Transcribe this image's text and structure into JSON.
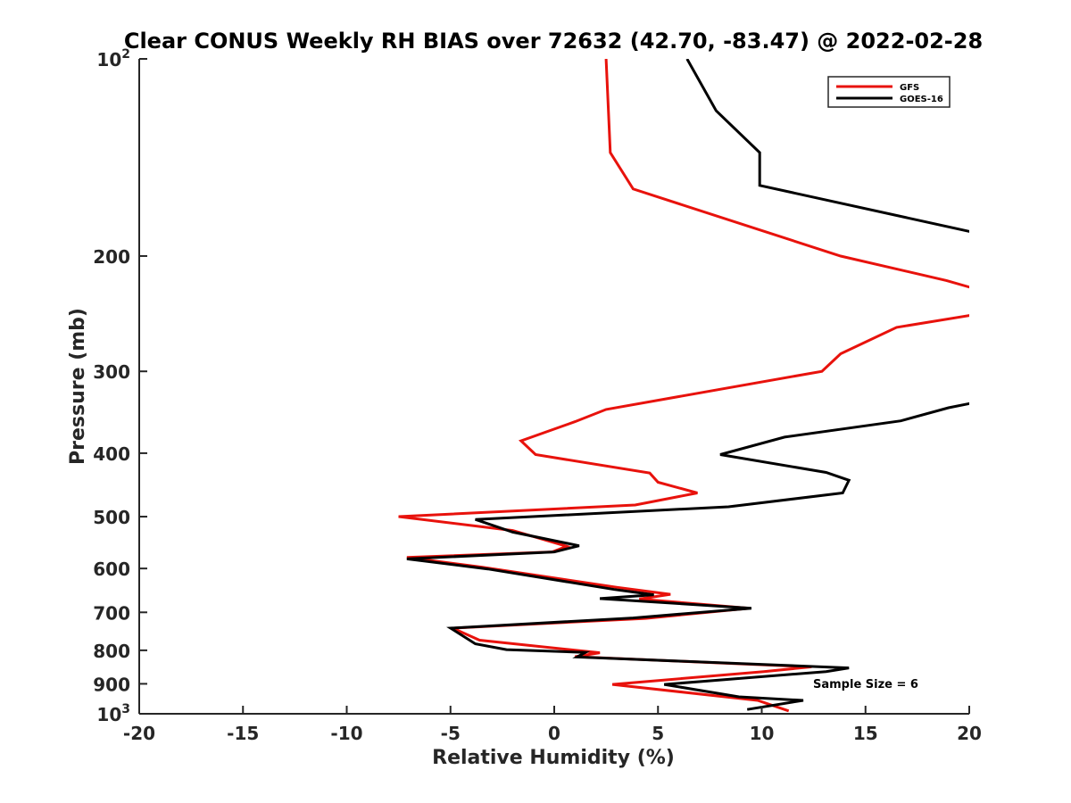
{
  "chart_data": {
    "type": "line",
    "title": "Clear CONUS Weekly RH BIAS over 72632 (42.70, -83.47) @ 2022-02-28",
    "xlabel": "Relative Humidity (%)",
    "ylabel": "Pressure (mb)",
    "xlim": [
      -20,
      20
    ],
    "ylim": [
      100,
      1000
    ],
    "y_scale": "log",
    "y_reversed": true,
    "x_ticks": [
      "-20",
      "-15",
      "-10",
      "-5",
      "0",
      "5",
      "10",
      "15",
      "20"
    ],
    "y_ticks": [
      {
        "value": 100,
        "base": "10",
        "exp": "2"
      },
      {
        "value": 200,
        "base": "200",
        "exp": ""
      },
      {
        "value": 300,
        "base": "300",
        "exp": ""
      },
      {
        "value": 400,
        "base": "400",
        "exp": ""
      },
      {
        "value": 500,
        "base": "500",
        "exp": ""
      },
      {
        "value": 600,
        "base": "600",
        "exp": ""
      },
      {
        "value": 700,
        "base": "700",
        "exp": ""
      },
      {
        "value": 800,
        "base": "800",
        "exp": ""
      },
      {
        "value": 900,
        "base": "900",
        "exp": ""
      },
      {
        "value": 1000,
        "base": "10",
        "exp": "3"
      }
    ],
    "legend_position": "top-right",
    "grid": false,
    "annotation": "Sample Size = 6",
    "series": [
      {
        "name": "GFS",
        "color": "#e8120c",
        "points": [
          [
            2.5,
            100
          ],
          [
            2.7,
            139
          ],
          [
            3.8,
            158
          ],
          [
            13.8,
            200
          ],
          [
            18.9,
            218
          ],
          [
            20.2,
            224
          ],
          [
            null,
            null
          ],
          [
            20.2,
            246
          ],
          [
            16.5,
            257
          ],
          [
            13.8,
            282
          ],
          [
            12.9,
            300
          ],
          [
            2.5,
            343
          ],
          [
            1.0,
            358
          ],
          [
            -1.6,
            383
          ],
          [
            -0.9,
            402
          ],
          [
            4.6,
            429
          ],
          [
            5.0,
            443
          ],
          [
            6.9,
            460
          ],
          [
            3.9,
            480
          ],
          [
            -7.5,
            500
          ],
          [
            -2.0,
            525
          ],
          [
            0.6,
            555
          ],
          [
            -0.1,
            566
          ],
          [
            -7.1,
            577
          ],
          [
            -3.5,
            597
          ],
          [
            3.0,
            641
          ],
          [
            5.6,
            657
          ],
          [
            4.1,
            668
          ],
          [
            9.4,
            690
          ],
          [
            4.4,
            715
          ],
          [
            -4.9,
            740
          ],
          [
            -3.6,
            772
          ],
          [
            2.2,
            807
          ],
          [
            1.0,
            818
          ],
          [
            12.4,
            848
          ],
          [
            10.1,
            862
          ],
          [
            2.8,
            902
          ],
          [
            9.8,
            954
          ],
          [
            11.3,
            990
          ]
        ]
      },
      {
        "name": "GOES-16",
        "color": "#000000",
        "points": [
          [
            6.4,
            100
          ],
          [
            7.8,
            120
          ],
          [
            9.9,
            139
          ],
          [
            9.9,
            156
          ],
          [
            20.2,
            184
          ],
          [
            null,
            null
          ],
          [
            20.2,
            335
          ],
          [
            19.0,
            341
          ],
          [
            16.7,
            357
          ],
          [
            11.1,
            378
          ],
          [
            8.0,
            402
          ],
          [
            13.1,
            428
          ],
          [
            14.2,
            440
          ],
          [
            13.9,
            460
          ],
          [
            8.4,
            483
          ],
          [
            -3.8,
            505
          ],
          [
            -2.0,
            528
          ],
          [
            1.2,
            554
          ],
          [
            0.0,
            566
          ],
          [
            -7.1,
            580
          ],
          [
            -3.2,
            601
          ],
          [
            2.9,
            646
          ],
          [
            4.8,
            658
          ],
          [
            2.2,
            667
          ],
          [
            9.5,
            690
          ],
          [
            3.8,
            714
          ],
          [
            -5.0,
            740
          ],
          [
            -3.8,
            782
          ],
          [
            -2.3,
            798
          ],
          [
            1.5,
            806
          ],
          [
            1.1,
            819
          ],
          [
            14.2,
            851
          ],
          [
            13.1,
            862
          ],
          [
            5.3,
            902
          ],
          [
            8.9,
            942
          ],
          [
            12.0,
            954
          ],
          [
            9.3,
            985
          ]
        ]
      }
    ]
  }
}
